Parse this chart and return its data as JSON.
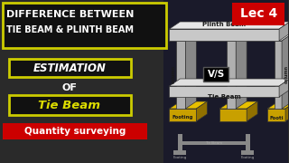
{
  "bg_color": "#2a2a2a",
  "title_line1": "DIFFERENCE BETWEEN",
  "title_line2": "TIE BEAM & PLINTH BEAM",
  "title_color": "#ffffff",
  "title_box_color": "#cccc00",
  "estimation_text": "ESTIMATION",
  "of_text": "OF",
  "tie_beam_text": "Tie Beam",
  "qty_text": "Quantity surveying",
  "estimation_box_color": "#cccc00",
  "tie_beam_box_color": "#cccc00",
  "lec_text": "Lec 4",
  "lec_bg": "#cc0000",
  "lec_color": "#ffffff",
  "plinth_beam_label": "Plinth Beam",
  "vs_text": "V/S",
  "tie_beam_label": "Tie Beam",
  "footing_label": "Footing",
  "footi_label": "Footi",
  "structure_color": "#d8d8d8",
  "structure_dark": "#a0a0a0",
  "footing_color": "#c8a000",
  "footing_dark": "#907000",
  "right_bg": "#1a1a2a",
  "column_color": "#888888",
  "vs_bg": "#000000"
}
